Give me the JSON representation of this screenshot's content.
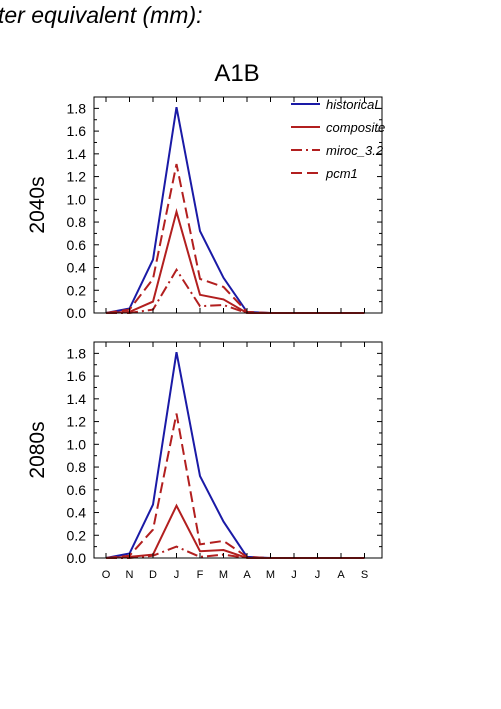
{
  "page": {
    "title": "ter equivalent (mm):"
  },
  "chart_data": [
    {
      "type": "line",
      "scenario_title": "A1B",
      "panel_label": "2040s",
      "categories": [
        "O",
        "N",
        "D",
        "J",
        "F",
        "M",
        "A",
        "M",
        "J",
        "J",
        "A",
        "S"
      ],
      "ylim": [
        0,
        1.9
      ],
      "yticks": [
        0.0,
        0.2,
        0.4,
        0.6,
        0.8,
        1.0,
        1.2,
        1.4,
        1.6,
        1.8
      ],
      "ytick_labels": [
        "0.0",
        "0.2",
        "0.4",
        "0.6",
        "0.8",
        "1.0",
        "1.2",
        "1.4",
        "1.6",
        "1.8"
      ],
      "grid": false,
      "legend_position": "top-right",
      "series": [
        {
          "name": "historicaL",
          "color": "#1a1aa6",
          "dash": "solid",
          "values": [
            0.0,
            0.04,
            0.47,
            1.81,
            0.72,
            0.31,
            0.01,
            0.0,
            0.0,
            0.0,
            0.0,
            0.0
          ]
        },
        {
          "name": "composite",
          "color": "#b21f1f",
          "dash": "solid",
          "values": [
            0.0,
            0.01,
            0.1,
            0.89,
            0.16,
            0.12,
            0.0,
            0.0,
            0.0,
            0.0,
            0.0,
            0.0
          ]
        },
        {
          "name": "miroc_3.2",
          "color": "#b21f1f",
          "dash": "dashdot",
          "values": [
            0.0,
            0.0,
            0.03,
            0.38,
            0.06,
            0.07,
            0.0,
            0.0,
            0.0,
            0.0,
            0.0,
            0.0
          ]
        },
        {
          "name": "pcm1",
          "color": "#b21f1f",
          "dash": "dash",
          "values": [
            0.0,
            0.03,
            0.3,
            1.31,
            0.3,
            0.23,
            0.01,
            0.0,
            0.0,
            0.0,
            0.0,
            0.0
          ]
        }
      ]
    },
    {
      "type": "line",
      "panel_label": "2080s",
      "categories": [
        "O",
        "N",
        "D",
        "J",
        "F",
        "M",
        "A",
        "M",
        "J",
        "J",
        "A",
        "S"
      ],
      "ylim": [
        0,
        1.9
      ],
      "yticks": [
        0.0,
        0.2,
        0.4,
        0.6,
        0.8,
        1.0,
        1.2,
        1.4,
        1.6,
        1.8
      ],
      "ytick_labels": [
        "0.0",
        "0.2",
        "0.4",
        "0.6",
        "0.8",
        "1.0",
        "1.2",
        "1.4",
        "1.6",
        "1.8"
      ],
      "grid": false,
      "series": [
        {
          "name": "historicaL",
          "color": "#1a1aa6",
          "dash": "solid",
          "values": [
            0.0,
            0.04,
            0.47,
            1.81,
            0.72,
            0.32,
            0.01,
            0.0,
            0.0,
            0.0,
            0.0,
            0.0
          ]
        },
        {
          "name": "composite",
          "color": "#b21f1f",
          "dash": "solid",
          "values": [
            0.0,
            0.01,
            0.03,
            0.46,
            0.06,
            0.07,
            0.0,
            0.0,
            0.0,
            0.0,
            0.0,
            0.0
          ]
        },
        {
          "name": "miroc_3.2",
          "color": "#b21f1f",
          "dash": "dashdot",
          "values": [
            0.0,
            0.0,
            0.02,
            0.1,
            0.01,
            0.03,
            0.0,
            0.0,
            0.0,
            0.0,
            0.0,
            0.0
          ]
        },
        {
          "name": "pcm1",
          "color": "#b21f1f",
          "dash": "dash",
          "values": [
            0.0,
            0.02,
            0.25,
            1.27,
            0.12,
            0.15,
            0.01,
            0.0,
            0.0,
            0.0,
            0.0,
            0.0
          ]
        }
      ]
    }
  ]
}
